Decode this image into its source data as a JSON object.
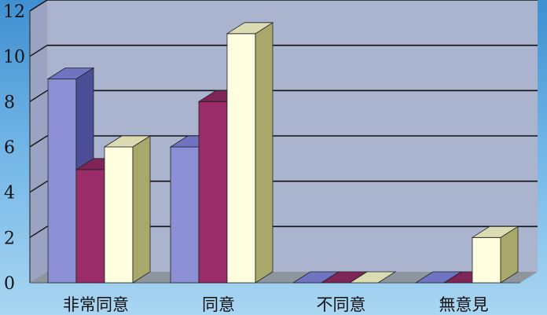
{
  "chart_data": {
    "type": "bar",
    "style": "3d-clustered-column",
    "categories": [
      "非常同意",
      "同意",
      "不同意",
      "無意見"
    ],
    "series": [
      {
        "values": [
          9,
          6,
          0,
          0
        ]
      },
      {
        "values": [
          5,
          8,
          0,
          0
        ]
      },
      {
        "values": [
          6,
          11,
          0,
          2
        ]
      }
    ],
    "ylim": [
      0,
      12
    ],
    "yticks": [
      0,
      2,
      4,
      6,
      8,
      10,
      12
    ],
    "grid": true,
    "legend": "none"
  },
  "colors": {
    "series": [
      {
        "front": "#8c8fd6",
        "side": "#4b4e97",
        "top": "#6f73c2"
      },
      {
        "front": "#9b2c6a",
        "side": "#5e1840",
        "top": "#7f2457"
      },
      {
        "front": "#ffffe0",
        "side": "#a8a86a",
        "top": "#dcdcb4"
      }
    ],
    "wall": "#aab4cf",
    "floor": "#8f959f",
    "grid": "#111111"
  }
}
